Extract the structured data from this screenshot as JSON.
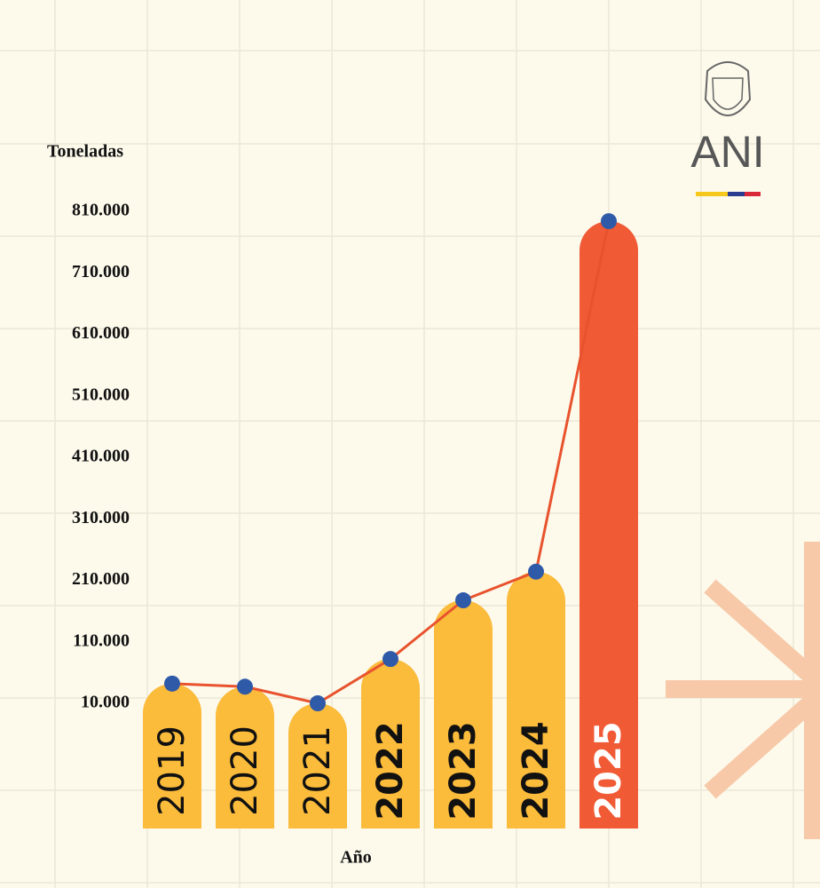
{
  "chart_data": {
    "type": "bar_line",
    "y_label": "Toneladas",
    "x_label": "Año",
    "categories": [
      "2019",
      "2020",
      "2021",
      "2022",
      "2023",
      "2024",
      "2025"
    ],
    "values": [
      42000,
      37000,
      10000,
      82000,
      177500,
      224000,
      794000
    ],
    "bar_colors": [
      "#fbbb3b",
      "#fbbb3b",
      "#fbbb3b",
      "#fbbb3b",
      "#fbbb3b",
      "#fbbb3b",
      "#f05a35"
    ],
    "label_colors": [
      "#111111",
      "#111111",
      "#111111",
      "#111111",
      "#111111",
      "#111111",
      "#ffffff"
    ],
    "line_color": "#e8532e",
    "marker_color": "#2f5aa8",
    "ylim": [
      10000,
      810000
    ],
    "yticks": [
      {
        "value": 10000,
        "label": "10.000"
      },
      {
        "value": 110000,
        "label": "110.000"
      },
      {
        "value": 210000,
        "label": "210.000"
      },
      {
        "value": 310000,
        "label": "310.000"
      },
      {
        "value": 410000,
        "label": "410.000"
      },
      {
        "value": 510000,
        "label": "510.000"
      },
      {
        "value": 610000,
        "label": "610.000"
      },
      {
        "value": 710000,
        "label": "710.000"
      },
      {
        "value": 810000,
        "label": "810.000"
      }
    ]
  },
  "logo": {
    "text": "ANI"
  }
}
